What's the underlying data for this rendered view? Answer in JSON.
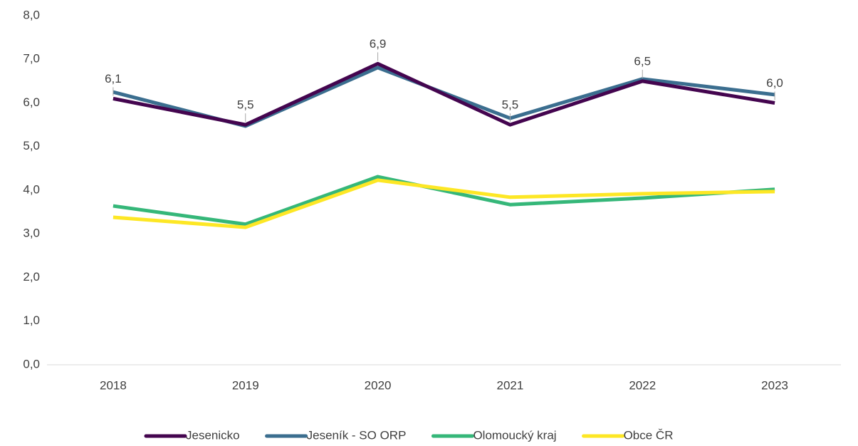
{
  "chart_data": {
    "type": "line",
    "categories": [
      "2018",
      "2019",
      "2020",
      "2021",
      "2022",
      "2023"
    ],
    "series": [
      {
        "name": "Jesenicko",
        "color": "#44054f",
        "values": [
          6.1,
          5.5,
          6.9,
          5.5,
          6.5,
          6.0
        ],
        "value_labels": [
          "6,1",
          "5,5",
          "6,9",
          "5,5",
          "6,5",
          "6,0"
        ]
      },
      {
        "name": "Jeseník - SO ORP",
        "color": "#3b6e8f",
        "values": [
          6.25,
          5.47,
          6.81,
          5.65,
          6.55,
          6.19
        ]
      },
      {
        "name": "Olomoucký kraj",
        "color": "#35b779",
        "values": [
          3.64,
          3.22,
          4.31,
          3.67,
          3.82,
          4.02
        ]
      },
      {
        "name": "Obce ČR",
        "color": "#fde725",
        "values": [
          3.38,
          3.15,
          4.23,
          3.84,
          3.92,
          3.97
        ]
      }
    ],
    "ylim": [
      0,
      8
    ],
    "yticks": [
      {
        "value": 0,
        "label": "0,0"
      },
      {
        "value": 1,
        "label": "1,0"
      },
      {
        "value": 2,
        "label": "2,0"
      },
      {
        "value": 3,
        "label": "3,0"
      },
      {
        "value": 4,
        "label": "4,0"
      },
      {
        "value": 5,
        "label": "5,0"
      },
      {
        "value": 6,
        "label": "6,0"
      },
      {
        "value": 7,
        "label": "7,0"
      },
      {
        "value": 8,
        "label": "8,0"
      }
    ],
    "grid": false,
    "legend": "bottom"
  }
}
